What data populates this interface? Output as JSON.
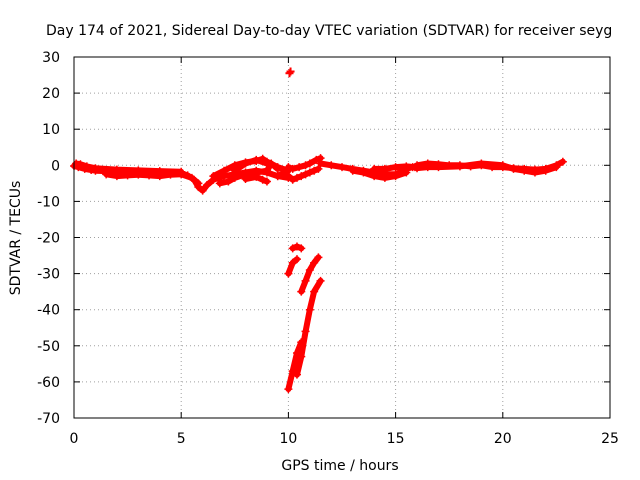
{
  "chart_data": {
    "type": "scatter",
    "title": "Day 174 of 2021, Sidereal Day-to-day VTEC variation (SDTVAR) for receiver seyg",
    "xlabel": "GPS time / hours",
    "ylabel": "SDTVAR / TECUs",
    "xlim": [
      0,
      25
    ],
    "ylim": [
      -70,
      30
    ],
    "xticks": [
      0,
      5,
      10,
      15,
      20,
      25
    ],
    "yticks": [
      -70,
      -60,
      -50,
      -40,
      -30,
      -20,
      -10,
      0,
      10,
      20,
      30
    ],
    "grid": true,
    "marker": "+",
    "series": [
      {
        "name": "SDTVAR",
        "color": "#ff0000",
        "segments": [
          [
            [
              0.0,
              -0.2
            ],
            [
              0.2,
              -0.5
            ],
            [
              0.5,
              -1.0
            ],
            [
              0.8,
              -1.3
            ],
            [
              1.0,
              -1.5
            ],
            [
              1.5,
              -1.6
            ],
            [
              2.0,
              -1.8
            ],
            [
              2.5,
              -2.0
            ],
            [
              3.0,
              -1.8
            ],
            [
              3.5,
              -2.0
            ],
            [
              4.0,
              -2.2
            ],
            [
              4.5,
              -2.0
            ],
            [
              5.0,
              -2.2
            ],
            [
              5.3,
              -2.8
            ],
            [
              5.6,
              -4.0
            ],
            [
              5.8,
              -6.0
            ],
            [
              6.0,
              -7.0
            ],
            [
              6.2,
              -5.5
            ],
            [
              6.5,
              -4.0
            ],
            [
              7.0,
              -3.0
            ],
            [
              7.5,
              -2.5
            ],
            [
              8.0,
              -2.0
            ],
            [
              8.5,
              -1.5
            ],
            [
              9.0,
              -2.0
            ],
            [
              9.5,
              -3.0
            ],
            [
              10.0,
              -3.5
            ]
          ],
          [
            [
              0.1,
              0.5
            ],
            [
              0.3,
              0.3
            ],
            [
              0.6,
              -0.3
            ],
            [
              1.0,
              -0.8
            ],
            [
              2.0,
              -1.2
            ],
            [
              3.0,
              -1.4
            ],
            [
              4.0,
              -1.6
            ],
            [
              5.0,
              -1.8
            ]
          ],
          [
            [
              1.5,
              -2.5
            ],
            [
              2.0,
              -3.0
            ],
            [
              2.5,
              -2.8
            ],
            [
              3.0,
              -2.6
            ],
            [
              3.5,
              -2.8
            ],
            [
              4.0,
              -3.0
            ],
            [
              4.5,
              -2.6
            ],
            [
              5.0,
              -2.5
            ],
            [
              5.5,
              -3.5
            ],
            [
              5.8,
              -5.0
            ]
          ],
          [
            [
              6.5,
              -3.0
            ],
            [
              7.0,
              -1.5
            ],
            [
              7.5,
              0.0
            ],
            [
              8.0,
              0.8
            ],
            [
              8.5,
              1.2
            ],
            [
              8.8,
              1.8
            ],
            [
              9.0,
              1.0
            ],
            [
              9.5,
              -0.5
            ],
            [
              10.0,
              -1.5
            ]
          ],
          [
            [
              6.8,
              -5.0
            ],
            [
              7.2,
              -4.5
            ],
            [
              7.5,
              -3.5
            ],
            [
              8.0,
              -2.5
            ],
            [
              8.5,
              -2.0
            ],
            [
              9.0,
              -1.5
            ],
            [
              9.2,
              0.5
            ],
            [
              9.5,
              -1.0
            ]
          ],
          [
            [
              7.5,
              -1.5
            ],
            [
              8.0,
              0.5
            ],
            [
              8.5,
              1.5
            ],
            [
              9.0,
              0.5
            ]
          ],
          [
            [
              8.0,
              -3.8
            ],
            [
              8.5,
              -3.2
            ],
            [
              8.8,
              -4.0
            ],
            [
              9.0,
              -4.5
            ]
          ],
          [
            [
              9.5,
              -3.0
            ],
            [
              9.8,
              -2.0
            ],
            [
              10.0,
              -3.0
            ],
            [
              10.2,
              -4.0
            ],
            [
              10.4,
              -3.5
            ],
            [
              10.6,
              -3.0
            ],
            [
              10.8,
              -2.5
            ],
            [
              11.0,
              -2.0
            ],
            [
              11.2,
              -1.5
            ],
            [
              11.4,
              -1.0
            ]
          ],
          [
            [
              10.0,
              -0.5
            ],
            [
              10.2,
              -1.0
            ],
            [
              10.5,
              -0.5
            ],
            [
              10.8,
              0.0
            ],
            [
              11.0,
              0.5
            ],
            [
              11.3,
              1.5
            ],
            [
              11.5,
              2.0
            ]
          ],
          [
            [
              11.5,
              0.5
            ],
            [
              12.0,
              0.0
            ],
            [
              12.5,
              -0.5
            ],
            [
              13.0,
              -1.0
            ],
            [
              13.5,
              -1.5
            ],
            [
              14.0,
              -2.0
            ],
            [
              14.5,
              -2.5
            ],
            [
              15.0,
              -2.5
            ],
            [
              15.5,
              -1.0
            ],
            [
              15.8,
              -0.5
            ]
          ],
          [
            [
              13.0,
              -1.5
            ],
            [
              13.5,
              -2.0
            ],
            [
              14.0,
              -3.0
            ],
            [
              14.5,
              -3.5
            ],
            [
              15.0,
              -3.0
            ],
            [
              15.5,
              -2.0
            ]
          ],
          [
            [
              14.0,
              -1.0
            ],
            [
              14.5,
              -1.0
            ],
            [
              15.0,
              -0.5
            ],
            [
              15.5,
              -0.3
            ],
            [
              15.9,
              -0.5
            ]
          ],
          [
            [
              16.0,
              0.0
            ],
            [
              16.5,
              0.5
            ],
            [
              17.0,
              0.3
            ],
            [
              17.5,
              0.0
            ],
            [
              18.0,
              0.0
            ],
            [
              18.5,
              -0.3
            ],
            [
              19.0,
              0.0
            ],
            [
              19.5,
              -0.5
            ],
            [
              20.0,
              -0.5
            ],
            [
              20.5,
              -0.8
            ],
            [
              21.0,
              -1.0
            ],
            [
              21.5,
              -1.2
            ],
            [
              22.0,
              -1.0
            ],
            [
              22.5,
              0.0
            ],
            [
              22.8,
              1.0
            ]
          ],
          [
            [
              16.0,
              -0.8
            ],
            [
              16.5,
              -0.5
            ],
            [
              17.0,
              -0.5
            ],
            [
              18.0,
              -0.3
            ],
            [
              19.0,
              0.5
            ],
            [
              20.0,
              0.0
            ],
            [
              20.5,
              -1.0
            ],
            [
              21.0,
              -1.5
            ],
            [
              21.5,
              -2.0
            ],
            [
              22.0,
              -1.5
            ],
            [
              22.5,
              -0.5
            ]
          ],
          [
            [
              10.2,
              -23.0
            ],
            [
              10.4,
              -22.5
            ],
            [
              10.6,
              -23.0
            ]
          ],
          [
            [
              10.0,
              -30.0
            ],
            [
              10.2,
              -27.0
            ],
            [
              10.4,
              -26.0
            ]
          ],
          [
            [
              10.6,
              -35.0
            ],
            [
              10.8,
              -32.0
            ],
            [
              11.0,
              -29.0
            ],
            [
              11.2,
              -27.0
            ],
            [
              11.4,
              -25.5
            ]
          ],
          [
            [
              10.0,
              -62.0
            ],
            [
              10.2,
              -57.0
            ],
            [
              10.4,
              -52.0
            ],
            [
              10.6,
              -49.0
            ]
          ],
          [
            [
              10.4,
              -58.0
            ],
            [
              10.6,
              -53.0
            ],
            [
              10.8,
              -46.0
            ],
            [
              11.0,
              -40.0
            ],
            [
              11.2,
              -35.0
            ],
            [
              11.5,
              -32.0
            ]
          ]
        ],
        "points": [
          [
            10.1,
            26.0
          ],
          [
            10.05,
            25.5
          ]
        ]
      }
    ]
  }
}
